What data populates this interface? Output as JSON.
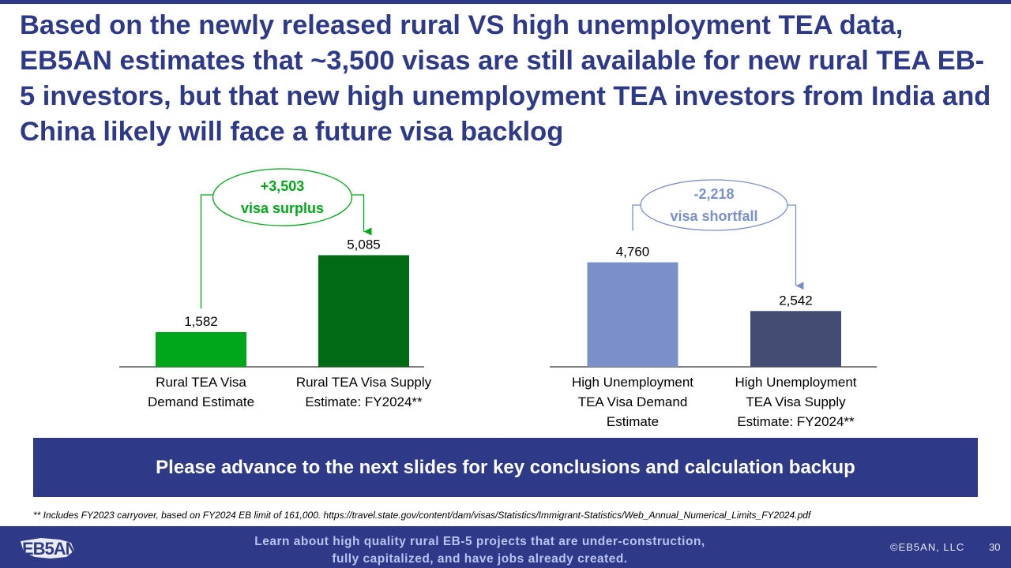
{
  "title": "Based on the newly released rural VS high unemployment TEA data, EB5AN estimates that ~3,500 visas are still available for new rural TEA EB-5 investors, but that new high unemployment TEA investors from India and China likely will face a future visa backlog",
  "chart_data": [
    {
      "type": "bar",
      "categories": [
        [
          "Rural TEA Visa",
          "Demand Estimate"
        ],
        [
          "Rural TEA Visa Supply",
          "Estimate: FY2024**"
        ]
      ],
      "values": [
        1582,
        5085
      ],
      "value_labels": [
        "1,582",
        "5,085"
      ],
      "colors": [
        "#00a619",
        "#006b14"
      ],
      "annotation": {
        "line1": "+3,503",
        "line2": "visa surplus",
        "color": "#00a619"
      }
    },
    {
      "type": "bar",
      "categories": [
        [
          "High Unemployment",
          "TEA Visa Demand",
          "Estimate"
        ],
        [
          "High Unemployment",
          "TEA Visa Supply",
          "Estimate: FY2024**"
        ]
      ],
      "values": [
        4760,
        2542
      ],
      "value_labels": [
        "4,760",
        "2,542"
      ],
      "colors": [
        "#7b8fc9",
        "#434d74"
      ],
      "annotation": {
        "line1": "-2,218",
        "line2": "visa shortfall",
        "color": "#7b8fc9"
      }
    }
  ],
  "banner": "Please advance to the next slides for key conclusions and calculation backup",
  "footnote": "** Includes FY2023 carryover,  based on FY2024 EB limit of 161,000. https://travel.state.gov/content/dam/visas/Statistics/Immigrant-Statistics/Web_Annual_Numerical_Limits_FY2024.pdf",
  "footer": {
    "logo_text": "EB5AN",
    "message_line1": "Learn about high quality rural EB-5 projects that are under-construction,",
    "message_line2": "fully capitalized, and have jobs already created.",
    "copyright": "©EB5AN, LLC",
    "page_number": "30"
  }
}
